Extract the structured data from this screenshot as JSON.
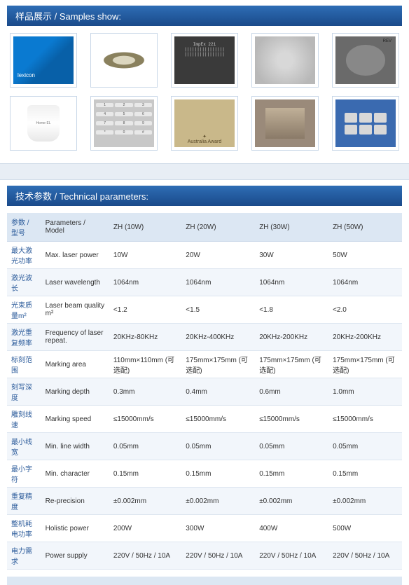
{
  "samples_header": "样品展示 / Samples show:",
  "params_header": "技术参数 / Technical parameters:",
  "table": {
    "head": [
      "参数 / 型号",
      "Parameters / Model",
      "ZH (10W)",
      "ZH (20W)",
      "ZH (30W)",
      "ZH (50W)"
    ],
    "rows": [
      [
        "最大激光功率",
        "Max. laser power",
        "10W",
        "20W",
        "30W",
        "50W"
      ],
      [
        "激光波长",
        "Laser wavelength",
        "1064nm",
        "1064nm",
        "1064nm",
        "1064nm"
      ],
      [
        "光束质量m²",
        "Laser beam quality m²",
        "<1.2",
        "<1.5",
        "<1.8",
        "<2.0"
      ],
      [
        "激光重复频率",
        "Frequency of laser repeat.",
        "20KHz-80KHz",
        "20KHz-400KHz",
        "20KHz-200KHz",
        "20KHz-200KHz"
      ],
      [
        "标刻范围",
        "Marking area",
        "110mm×110mm (可选配)",
        "175mm×175mm (可选配)",
        "175mm×175mm (可选配)",
        "175mm×175mm (可选配)"
      ],
      [
        "刻写深度",
        "Marking depth",
        "0.3mm",
        "0.4mm",
        "0.6mm",
        "1.0mm"
      ],
      [
        "雕刻线速",
        "Marking speed",
        "≤15000mm/s",
        "≤15000mm/s",
        "≤15000mm/s",
        "≤15000mm/s"
      ],
      [
        "最小线宽",
        "Min. line width",
        "0.05mm",
        "0.05mm",
        "0.05mm",
        "0.05mm"
      ],
      [
        "最小字符",
        "Min. character",
        "0.15mm",
        "0.15mm",
        "0.15mm",
        "0.15mm"
      ],
      [
        "重复精度",
        "Re-precision",
        "±0.002mm",
        "±0.002mm",
        "±0.002mm",
        "±0.002mm"
      ],
      [
        "整机耗电功率",
        "Holistic power",
        "200W",
        "300W",
        "400W",
        "500W"
      ],
      [
        "电力需求",
        "Power supply",
        "220V / 50Hz / 10A",
        "220V / 50Hz / 10A",
        "220V / 50Hz / 10A",
        "220V / 50Hz / 10A"
      ]
    ]
  },
  "samples": {
    "chip_text": "ImpEx 221\n||||||||||||||||\n||||||||||||||||",
    "australia": "Australia Award",
    "cup": "Home-EL"
  }
}
